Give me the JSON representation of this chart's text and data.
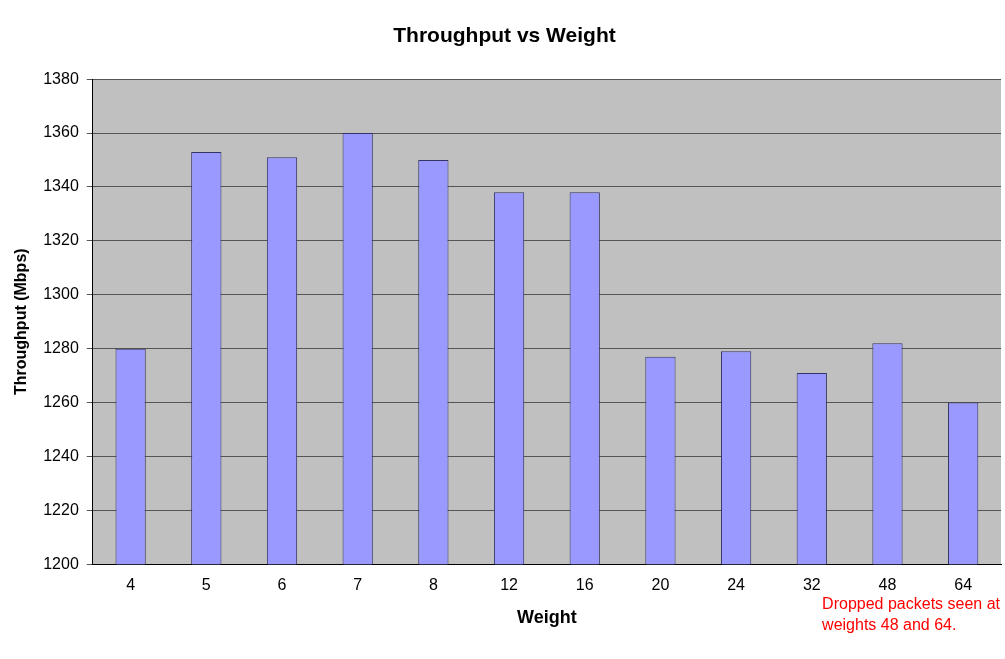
{
  "chart_data": {
    "type": "bar",
    "title": "Throughput vs Weight",
    "xlabel": "Weight",
    "ylabel": "Throughput (Mbps)",
    "categories": [
      "4",
      "5",
      "6",
      "7",
      "8",
      "12",
      "16",
      "20",
      "24",
      "32",
      "48",
      "64"
    ],
    "values": [
      1280,
      1353,
      1351,
      1360,
      1350,
      1338,
      1338,
      1277,
      1279,
      1271,
      1282,
      1260
    ],
    "color": "#9999ff",
    "ylim": [
      1200,
      1380
    ],
    "yticks": [
      1200,
      1220,
      1240,
      1260,
      1280,
      1300,
      1320,
      1340,
      1360,
      1380
    ],
    "grid": "y",
    "annotations": [
      "Dropped packets seen at weights 48 and 64."
    ]
  }
}
